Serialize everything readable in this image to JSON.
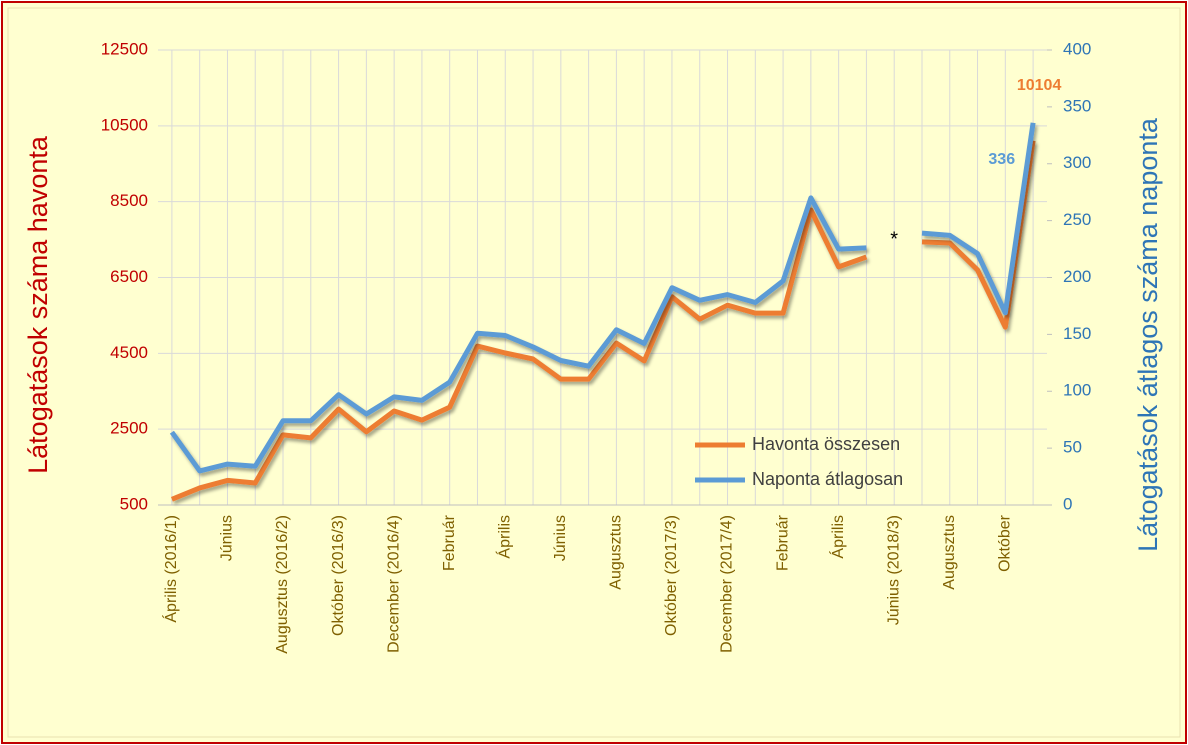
{
  "chart_data": {
    "type": "line",
    "categories": [
      "Április (2016/1)",
      null,
      "Június",
      null,
      "Augusztus (2016/2)",
      null,
      "Október (2016/3)",
      null,
      "December (2016/4)",
      null,
      "Február",
      null,
      "Április",
      null,
      "Június",
      null,
      "Augusztus",
      null,
      "Október (2017/3)",
      null,
      "December (2017/4)",
      null,
      "Február",
      null,
      "Április",
      null,
      "Június (2018/3)",
      null,
      "Augusztus",
      null,
      "Október",
      null
    ],
    "series": [
      {
        "name": "Havonta összesen",
        "color": "#ed7d31",
        "axis": "y",
        "values": [
          650,
          950,
          1150,
          1080,
          2350,
          2270,
          3030,
          2430,
          2980,
          2740,
          3080,
          4690,
          4510,
          4350,
          3820,
          3820,
          4770,
          4300,
          5990,
          5400,
          5770,
          5560,
          5560,
          8280,
          6780,
          7040,
          null,
          7440,
          7410,
          6700,
          5190,
          10104
        ],
        "value_labels": [
          null,
          null,
          null,
          null,
          null,
          null,
          null,
          null,
          null,
          null,
          null,
          null,
          null,
          null,
          null,
          null,
          null,
          null,
          null,
          null,
          null,
          null,
          null,
          null,
          null,
          null,
          null,
          null,
          null,
          null,
          null,
          "10104"
        ]
      },
      {
        "name": "Naponta átlagosan",
        "color": "#5b9bd5",
        "axis": "y2",
        "values": [
          64,
          30,
          36,
          34,
          74,
          74,
          97,
          80,
          95,
          92,
          108,
          151,
          149,
          139,
          127,
          122,
          154,
          142,
          191,
          180,
          185,
          178,
          197,
          270,
          225,
          226,
          null,
          239,
          237,
          221,
          169,
          336
        ],
        "value_labels": [
          null,
          null,
          null,
          null,
          null,
          null,
          null,
          null,
          null,
          null,
          null,
          null,
          null,
          null,
          null,
          null,
          null,
          null,
          null,
          null,
          null,
          null,
          null,
          null,
          null,
          null,
          null,
          null,
          null,
          null,
          null,
          "336"
        ]
      }
    ],
    "ylabel": "Látogatások száma havonta",
    "y2label": "Látogatások átlagos száma naponta",
    "ylim": [
      500,
      12500
    ],
    "yticks": [
      500,
      2500,
      4500,
      6500,
      8500,
      10500,
      12500
    ],
    "y2lim": [
      0,
      400
    ],
    "y2ticks": [
      0,
      50,
      100,
      150,
      200,
      250,
      300,
      350,
      400
    ],
    "annotation": "*",
    "grid": true,
    "legend": "lower right"
  }
}
